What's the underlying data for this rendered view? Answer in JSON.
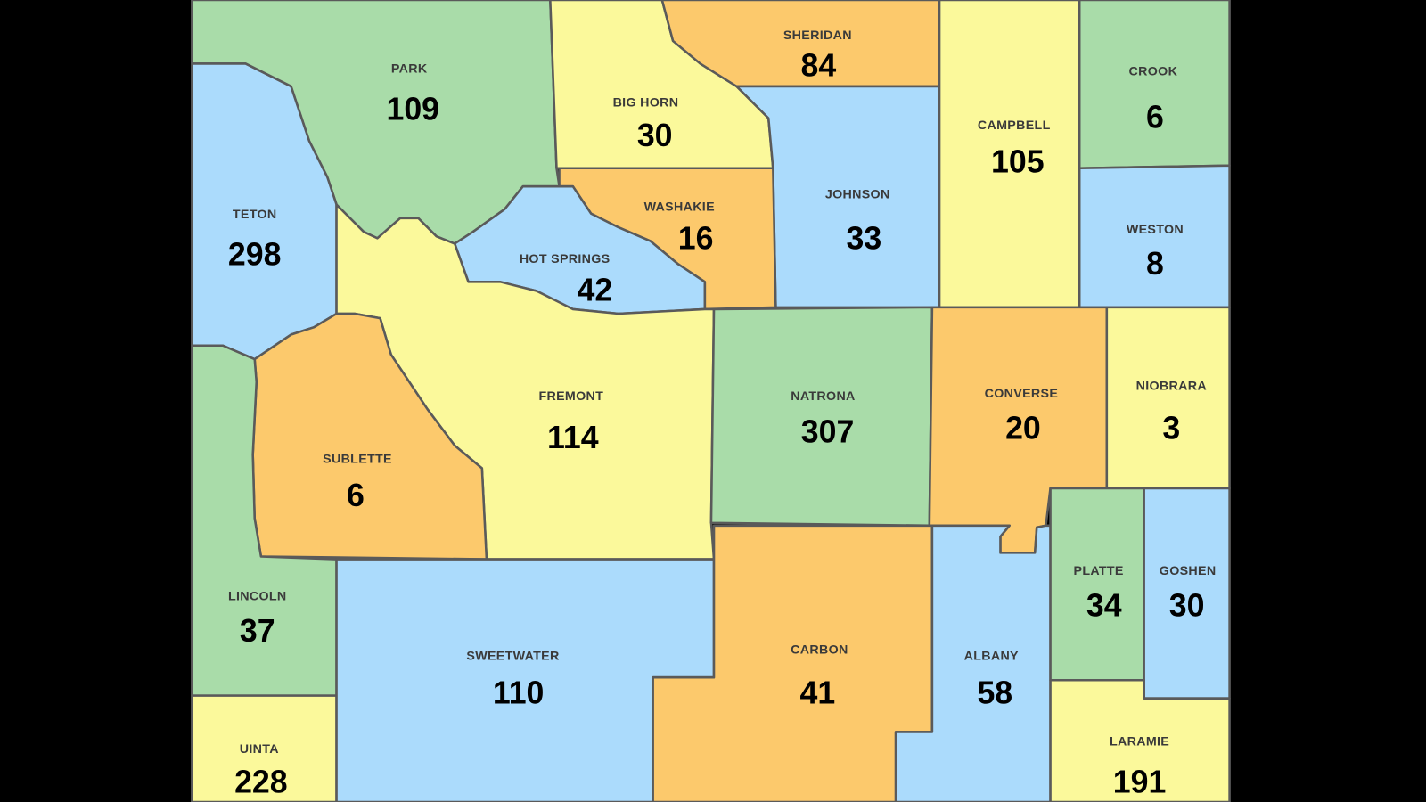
{
  "counties": [
    {
      "name": "PARK",
      "value": 109
    },
    {
      "name": "TETON",
      "value": 298
    },
    {
      "name": "BIG HORN",
      "value": 30
    },
    {
      "name": "SHERIDAN",
      "value": 84
    },
    {
      "name": "JOHNSON",
      "value": 33
    },
    {
      "name": "CAMPBELL",
      "value": 105
    },
    {
      "name": "CROOK",
      "value": 6
    },
    {
      "name": "WESTON",
      "value": 8
    },
    {
      "name": "WASHAKIE",
      "value": 16
    },
    {
      "name": "HOT SPRINGS",
      "value": 42
    },
    {
      "name": "FREMONT",
      "value": 114
    },
    {
      "name": "SUBLETTE",
      "value": 6
    },
    {
      "name": "NATRONA",
      "value": 307
    },
    {
      "name": "CONVERSE",
      "value": 20
    },
    {
      "name": "NIOBRARA",
      "value": 3
    },
    {
      "name": "LINCOLN",
      "value": 37
    },
    {
      "name": "UINTA",
      "value": 228
    },
    {
      "name": "SWEETWATER",
      "value": 110
    },
    {
      "name": "CARBON",
      "value": 41
    },
    {
      "name": "ALBANY",
      "value": 58
    },
    {
      "name": "PLATTE",
      "value": 34
    },
    {
      "name": "GOSHEN",
      "value": 30
    },
    {
      "name": "LARAMIE",
      "value": 191
    }
  ]
}
